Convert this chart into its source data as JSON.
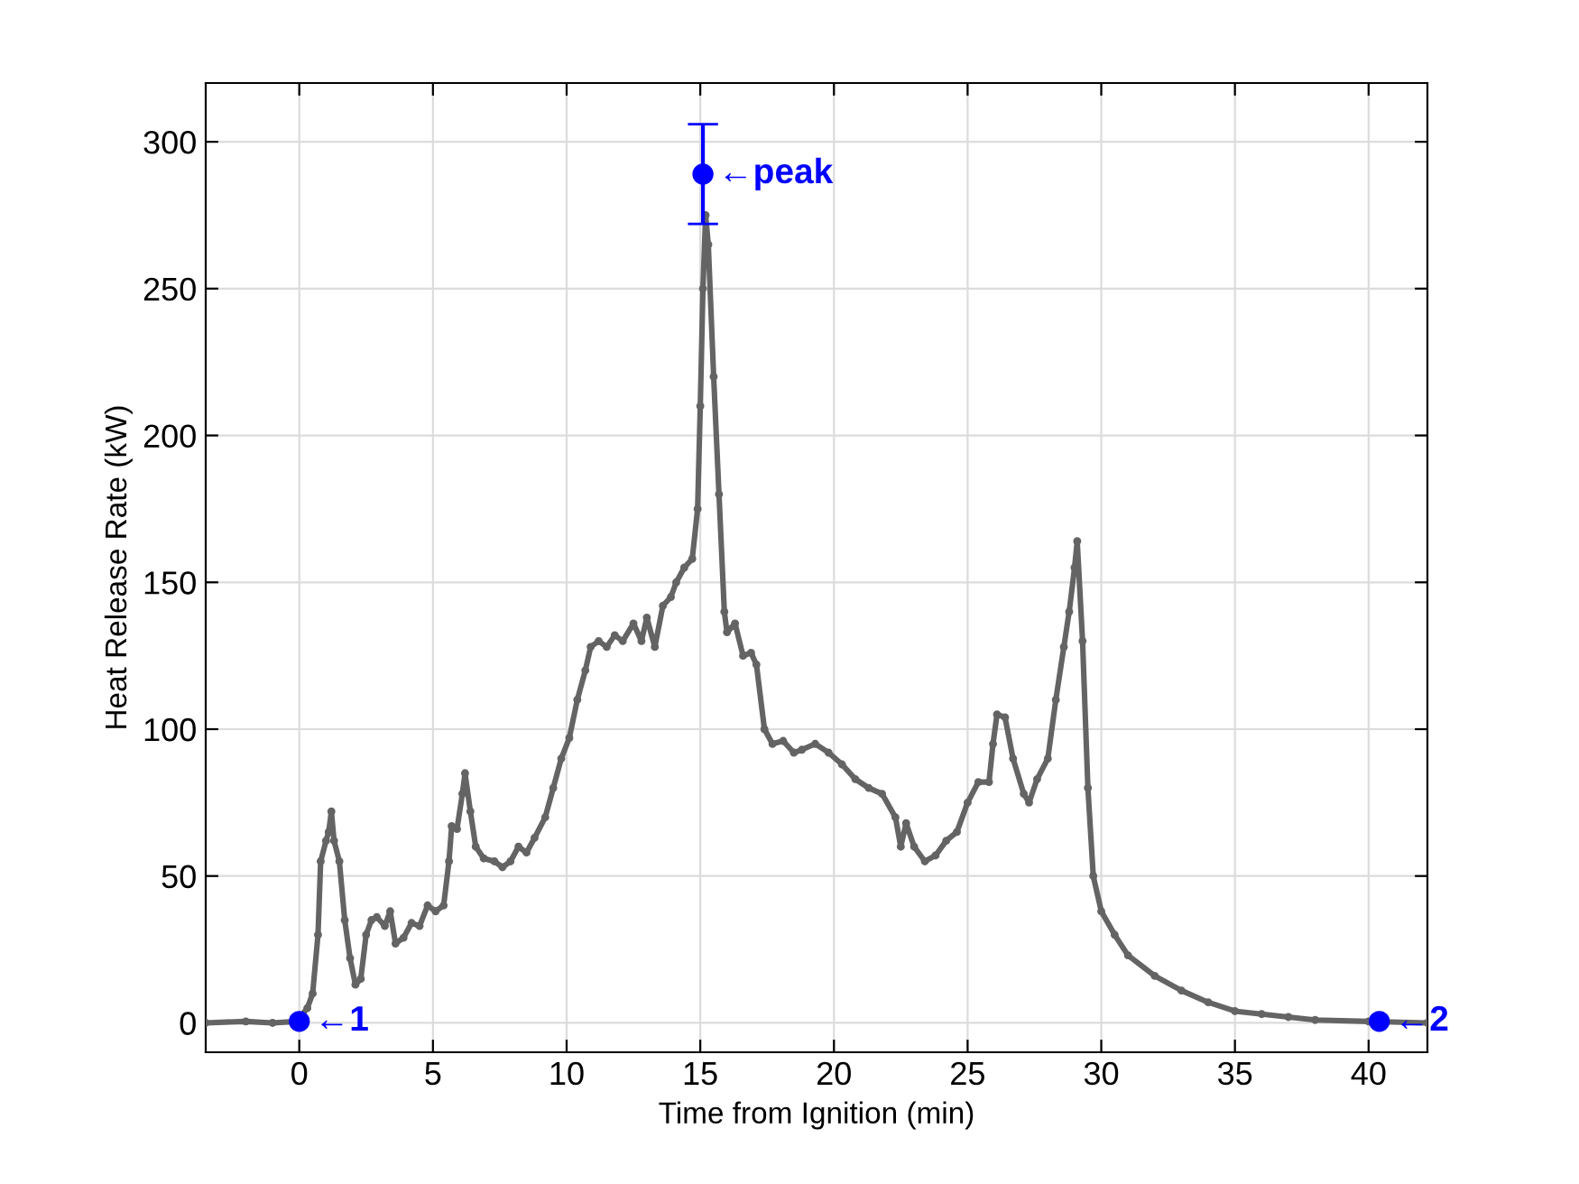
{
  "chart_data": {
    "type": "line",
    "xlabel": "Time from Ignition (min)",
    "ylabel": "Heat Release Rate (kW)",
    "xlim": [
      -3.5,
      42.2
    ],
    "ylim": [
      -10,
      320
    ],
    "xticks": [
      0,
      5,
      10,
      15,
      20,
      25,
      30,
      35,
      40
    ],
    "yticks": [
      0,
      50,
      100,
      150,
      200,
      250,
      300
    ],
    "grid": true,
    "series": [
      {
        "color": "#646464",
        "marker": "circle",
        "x": [
          -3.5,
          -2,
          -1,
          -0.1,
          0.3,
          0.5,
          0.7,
          0.8,
          1.0,
          1.1,
          1.2,
          1.3,
          1.5,
          1.7,
          1.9,
          2.1,
          2.3,
          2.5,
          2.7,
          2.9,
          3.2,
          3.4,
          3.6,
          3.9,
          4.2,
          4.5,
          4.8,
          5.1,
          5.4,
          5.6,
          5.7,
          5.9,
          6.1,
          6.2,
          6.4,
          6.6,
          6.9,
          7.3,
          7.6,
          7.9,
          8.2,
          8.5,
          8.8,
          9.2,
          9.5,
          9.8,
          10.1,
          10.4,
          10.7,
          10.9,
          11.2,
          11.5,
          11.8,
          12.1,
          12.5,
          12.8,
          13.0,
          13.3,
          13.6,
          13.9,
          14.1,
          14.4,
          14.7,
          14.9,
          15.0,
          15.1,
          15.2,
          15.3,
          15.5,
          15.7,
          15.9,
          16.0,
          16.3,
          16.6,
          16.9,
          17.1,
          17.4,
          17.7,
          18.1,
          18.5,
          18.8,
          19.3,
          19.8,
          20.3,
          20.8,
          21.3,
          21.8,
          22.3,
          22.5,
          22.7,
          23.0,
          23.4,
          23.8,
          24.2,
          24.6,
          25.0,
          25.4,
          25.8,
          25.95,
          26.1,
          26.4,
          26.7,
          27.1,
          27.3,
          27.6,
          28.0,
          28.3,
          28.6,
          28.8,
          29.0,
          29.1,
          29.3,
          29.5,
          29.7,
          30.0,
          30.5,
          31.0,
          32,
          33,
          34,
          35,
          36,
          37,
          38,
          40,
          42.2
        ],
        "values": [
          0,
          0.5,
          0,
          0.5,
          5,
          10,
          30,
          55,
          62,
          65,
          72,
          62,
          55,
          35,
          22,
          13,
          15,
          30,
          35,
          36,
          33,
          38,
          27,
          29,
          34,
          33,
          40,
          38,
          40,
          55,
          67,
          66,
          78,
          85,
          72,
          60,
          56,
          55,
          53,
          55,
          60,
          58,
          63,
          70,
          80,
          90,
          97,
          110,
          120,
          128,
          130,
          128,
          132,
          130,
          136,
          130,
          138,
          128,
          142,
          145,
          150,
          155,
          158,
          175,
          210,
          250,
          275,
          265,
          220,
          180,
          140,
          133,
          136,
          125,
          126,
          122,
          100,
          95,
          96,
          92,
          93,
          95,
          92,
          88,
          83,
          80,
          78,
          70,
          60,
          68,
          60,
          55,
          57,
          62,
          65,
          75,
          82,
          82,
          95,
          105,
          104,
          90,
          78,
          75,
          83,
          90,
          110,
          128,
          140,
          155,
          164,
          130,
          80,
          50,
          38,
          30,
          23,
          16,
          11,
          7,
          4,
          3,
          2,
          1,
          0.5,
          0
        ]
      },
      {
        "type": "scatter",
        "color": "#0000ff",
        "marker": "circle",
        "x": [
          0,
          15.1,
          40.4
        ],
        "values": [
          0.5,
          289,
          0.5
        ],
        "errors": [
          null,
          [
            272,
            306
          ],
          null
        ]
      }
    ],
    "annotations": [
      {
        "text": "←1",
        "x": 0,
        "y": 0.5
      },
      {
        "text": "←peak",
        "x": 15.1,
        "y": 289
      },
      {
        "text": "←2",
        "x": 40.4,
        "y": 0.5
      }
    ]
  }
}
